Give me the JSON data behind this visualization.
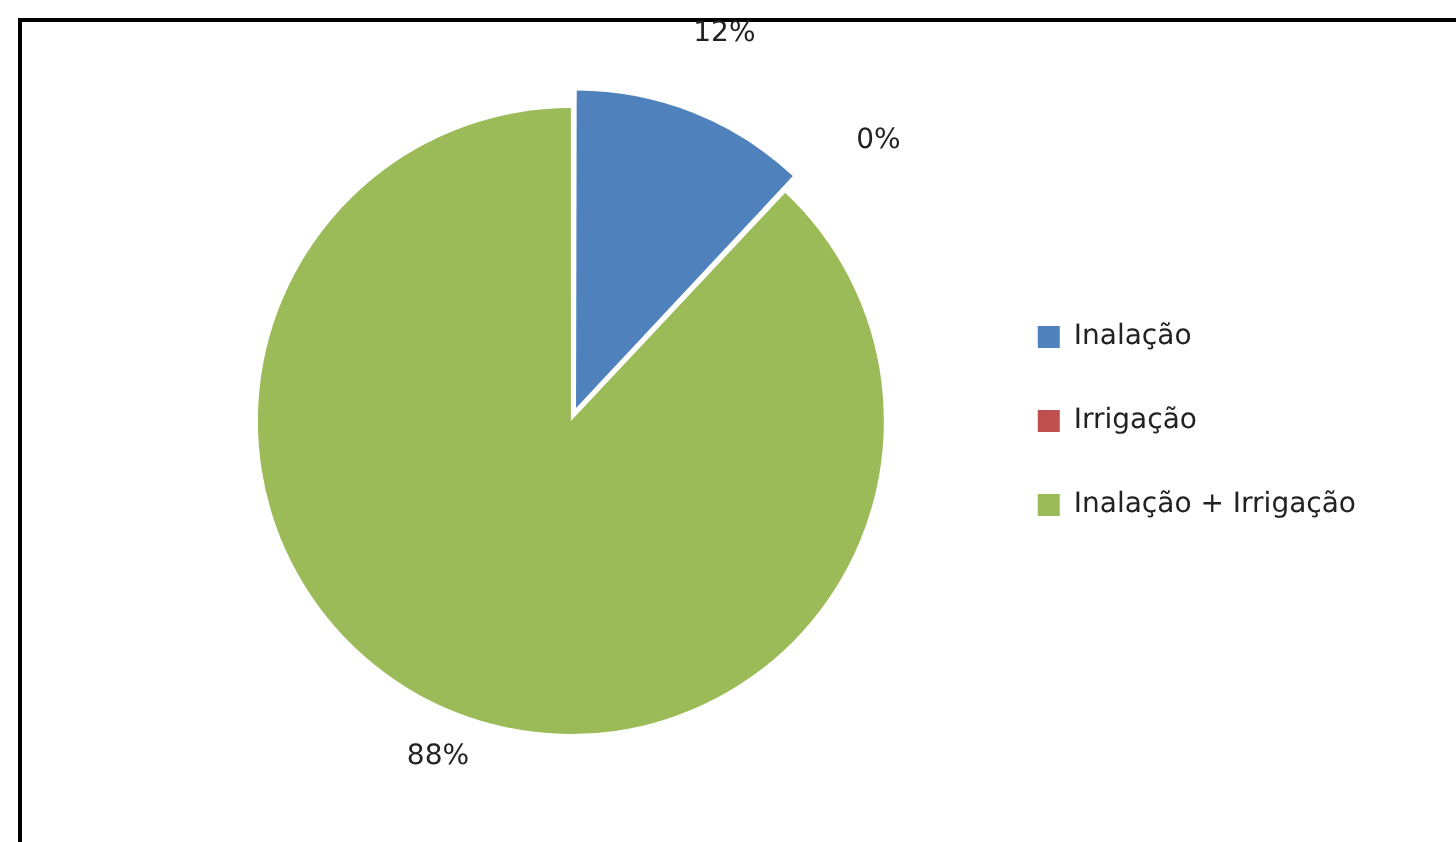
{
  "chart_data": {
    "type": "pie",
    "categories": [
      "Inalação",
      "Irrigação",
      "Inalação + Irrigação"
    ],
    "values": [
      12,
      0,
      88
    ],
    "colors": [
      "#4f81bd",
      "#c0504d",
      "#9bbb59"
    ],
    "value_labels": [
      "12%",
      "0%",
      "88%"
    ],
    "legend": "right"
  }
}
